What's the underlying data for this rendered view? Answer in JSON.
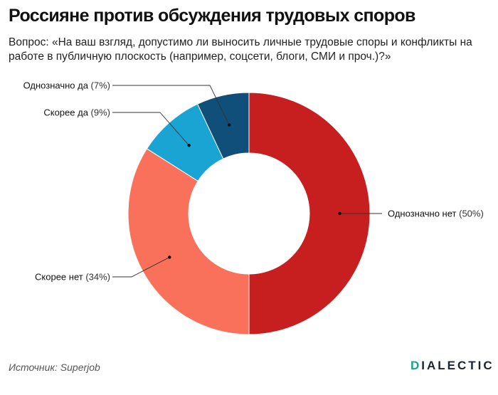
{
  "title": "Россияне против обсуждения трудовых споров",
  "subtitle": "Вопрос: «На ваш взгляд, допустимо ли выносить личные трудовые споры и конфликты на работе в публичную плоскость (например, соцсети, блоги, СМИ и проч.)?»",
  "source": "Источник: Superjob",
  "brand": {
    "first": "D",
    "rest": "IALECTIC"
  },
  "chart_data": {
    "type": "pie",
    "donut": true,
    "categories": [
      "Однозначно нет",
      "Скорее нет",
      "Скорее да",
      "Однозначно да"
    ],
    "values": [
      50,
      34,
      9,
      7
    ],
    "labels": [
      "(50%)",
      "(34%)",
      "(9%)",
      "(7%)"
    ],
    "colors": [
      "#c71f1f",
      "#f9715b",
      "#1aa4d3",
      "#0f4f7a"
    ],
    "legend": "none"
  }
}
